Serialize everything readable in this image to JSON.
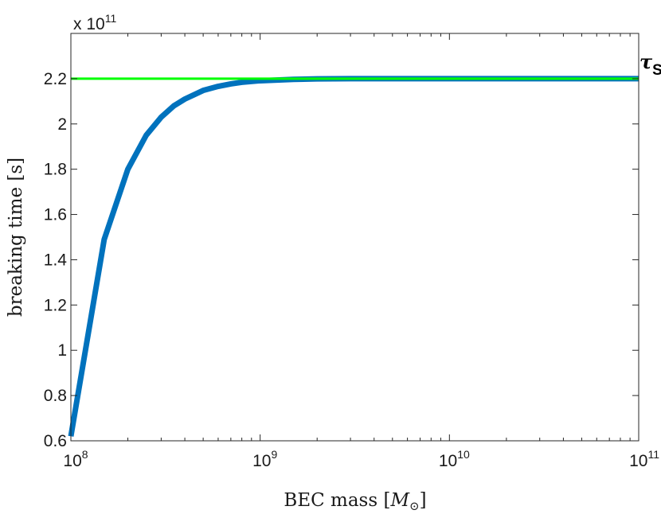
{
  "chart_data": {
    "type": "line",
    "xlabel": "BEC mass [",
    "xlabel_symbol": "M",
    "xlabel_sub": "⊙",
    "xlabel_close": "]",
    "ylabel": "breaking time [s]",
    "y_exponent_label": "x 10",
    "y_exponent_power": "11",
    "x_scale": "log",
    "xlim": [
      100000000,
      100000000000
    ],
    "ylim": [
      0.6,
      2.4
    ],
    "x_ticks": [
      {
        "value": 100000000,
        "base": "10",
        "power": "8"
      },
      {
        "value": 1000000000,
        "base": "10",
        "power": "9"
      },
      {
        "value": 10000000000,
        "base": "10",
        "power": "10"
      },
      {
        "value": 100000000000,
        "base": "10",
        "power": "11"
      }
    ],
    "y_ticks": [
      {
        "value": 0.6,
        "label": "0.6"
      },
      {
        "value": 0.8,
        "label": "0.8"
      },
      {
        "value": 1.0,
        "label": "1"
      },
      {
        "value": 1.2,
        "label": "1.2"
      },
      {
        "value": 1.4,
        "label": "1.4"
      },
      {
        "value": 1.6,
        "label": "1.6"
      },
      {
        "value": 1.8,
        "label": "1.8"
      },
      {
        "value": 2.0,
        "label": "2"
      },
      {
        "value": 2.2,
        "label": "2.2"
      }
    ],
    "grid": false,
    "series": [
      {
        "color": "#0072bd",
        "x": [
          100000000,
          150000000,
          200000000,
          250000000,
          300000000,
          350000000,
          400000000,
          450000000,
          500000000,
          600000000,
          700000000,
          800000000,
          1000000000,
          1500000000,
          2000000000,
          3000000000,
          5000000000,
          10000000000,
          100000000000
        ],
        "y": [
          0.62,
          1.49,
          1.8,
          1.95,
          2.03,
          2.08,
          2.11,
          2.13,
          2.148,
          2.166,
          2.177,
          2.184,
          2.191,
          2.197,
          2.199,
          2.2,
          2.2,
          2.2,
          2.2
        ]
      },
      {
        "color": "#00ff00",
        "x": [
          100000000,
          100000000000
        ],
        "y": [
          2.2,
          2.2
        ]
      }
    ],
    "annotation": {
      "symbol": "τ",
      "subscript": "S",
      "y": 2.2
    }
  }
}
